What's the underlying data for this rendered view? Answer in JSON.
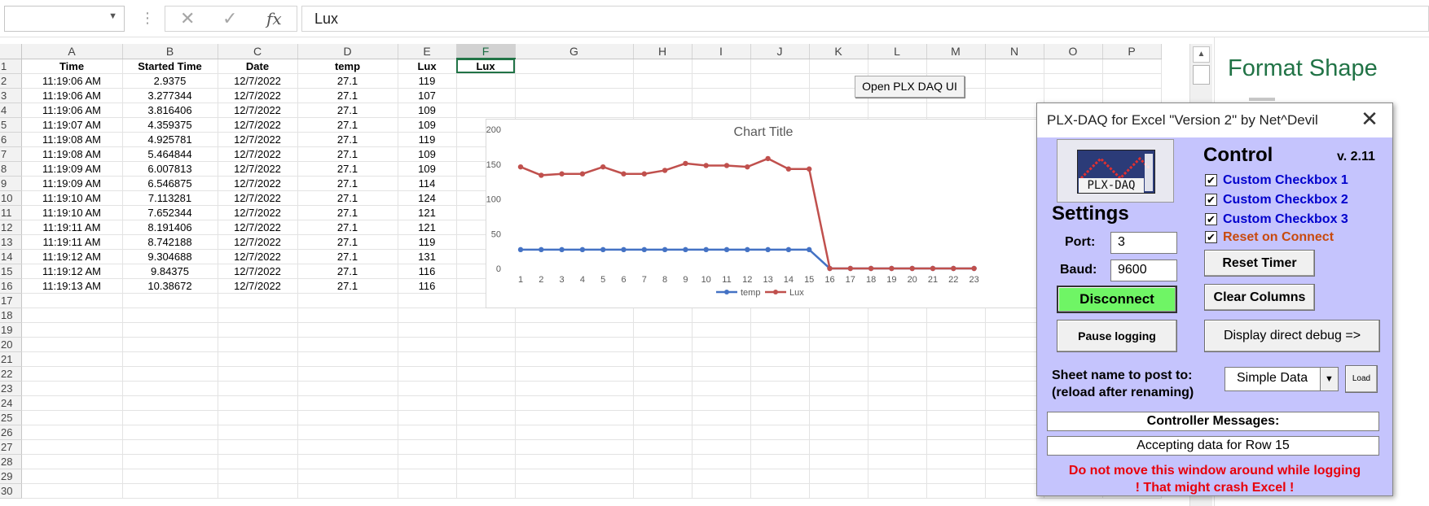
{
  "formula_bar": {
    "name_box_value": "",
    "fx_label": "fx",
    "cancel_glyph": "✕",
    "enter_glyph": "✓",
    "content": "Lux"
  },
  "sheet": {
    "columns": [
      "A",
      "B",
      "C",
      "D",
      "E",
      "F",
      "G",
      "H",
      "I",
      "J",
      "K",
      "L",
      "M",
      "N",
      "O",
      "P"
    ],
    "selected_column": "F",
    "headers": [
      "Time",
      "Started Time",
      "Date",
      "temp",
      "Lux",
      "Lux"
    ],
    "rows": [
      [
        "11:19:06 AM",
        "2.9375",
        "12/7/2022",
        "27.1",
        "119"
      ],
      [
        "11:19:06 AM",
        "3.277344",
        "12/7/2022",
        "27.1",
        "107"
      ],
      [
        "11:19:06 AM",
        "3.816406",
        "12/7/2022",
        "27.1",
        "109"
      ],
      [
        "11:19:07 AM",
        "4.359375",
        "12/7/2022",
        "27.1",
        "109"
      ],
      [
        "11:19:08 AM",
        "4.925781",
        "12/7/2022",
        "27.1",
        "119"
      ],
      [
        "11:19:08 AM",
        "5.464844",
        "12/7/2022",
        "27.1",
        "109"
      ],
      [
        "11:19:09 AM",
        "6.007813",
        "12/7/2022",
        "27.1",
        "109"
      ],
      [
        "11:19:09 AM",
        "6.546875",
        "12/7/2022",
        "27.1",
        "114"
      ],
      [
        "11:19:10 AM",
        "7.113281",
        "12/7/2022",
        "27.1",
        "124"
      ],
      [
        "11:19:10 AM",
        "7.652344",
        "12/7/2022",
        "27.1",
        "121"
      ],
      [
        "11:19:11 AM",
        "8.191406",
        "12/7/2022",
        "27.1",
        "121"
      ],
      [
        "11:19:11 AM",
        "8.742188",
        "12/7/2022",
        "27.1",
        "119"
      ],
      [
        "11:19:12 AM",
        "9.304688",
        "12/7/2022",
        "27.1",
        "131"
      ],
      [
        "11:19:12 AM",
        "9.84375",
        "12/7/2022",
        "27.1",
        "116"
      ],
      [
        "11:19:13 AM",
        "10.38672",
        "12/7/2022",
        "27.1",
        "116"
      ]
    ],
    "row_numbers": [
      "1",
      "2",
      "3",
      "4",
      "5",
      "6",
      "7",
      "8",
      "9",
      "10",
      "11",
      "12",
      "13",
      "14",
      "15",
      "16",
      "17",
      "18",
      "19",
      "20",
      "21",
      "22",
      "23",
      "24",
      "25",
      "26",
      "27",
      "28",
      "29",
      "30"
    ]
  },
  "format_pane": {
    "title": "Format Shape"
  },
  "open_plx_button": "Open PLX DAQ UI",
  "chart_data": {
    "type": "line",
    "title": "Chart Title",
    "categories": [
      "1",
      "2",
      "3",
      "4",
      "5",
      "6",
      "7",
      "8",
      "9",
      "10",
      "11",
      "12",
      "13",
      "14",
      "15",
      "16",
      "17",
      "18",
      "19",
      "20",
      "21",
      "22",
      "23"
    ],
    "series": [
      {
        "name": "temp",
        "color": "#4472c4",
        "values": [
          27.1,
          27.1,
          27.1,
          27.1,
          27.1,
          27.1,
          27.1,
          27.1,
          27.1,
          27.1,
          27.1,
          27.1,
          27.1,
          27.1,
          27.1,
          0,
          0,
          0,
          0,
          0,
          0,
          0,
          0
        ]
      },
      {
        "name": "Lux",
        "color": "#c0504d",
        "values": [
          146,
          134,
          136,
          136,
          146,
          136,
          136,
          141,
          151,
          148,
          148,
          146,
          158,
          143,
          143,
          0,
          0,
          0,
          0,
          0,
          0,
          0,
          0
        ]
      }
    ],
    "yticks": [
      "0",
      "50",
      "100",
      "150",
      "200"
    ],
    "ylim": [
      0,
      200
    ],
    "legend": "bottom",
    "grid": false
  },
  "plx": {
    "title": "PLX-DAQ for Excel \"Version 2\" by Net^Devil",
    "close_glyph": "✕",
    "logo_text": "PLX-DAQ",
    "settings_heading": "Settings",
    "control_heading": "Control",
    "version": "v. 2.11",
    "port_label": "Port:",
    "port_value": "3",
    "baud_label": "Baud:",
    "baud_value": "9600",
    "disconnect_label": "Disconnect",
    "pause_label": "Pause logging",
    "reset_timer_label": "Reset Timer",
    "clear_columns_label": "Clear Columns",
    "debug_label": "Display direct debug =>",
    "checkbox_glyph": "✔",
    "checkboxes": [
      "Custom Checkbox 1",
      "Custom Checkbox 2",
      "Custom Checkbox 3",
      "Reset on Connect"
    ],
    "sheet_label_1": "Sheet name to post to:",
    "sheet_label_2": "(reload after renaming)",
    "sheet_value": "Simple Data",
    "load_label": "Load",
    "messages_header": "Controller Messages:",
    "messages_text": "Accepting data for Row 15",
    "warning_1": "Do not move this window around while logging",
    "warning_2": "! That might crash Excel !"
  }
}
